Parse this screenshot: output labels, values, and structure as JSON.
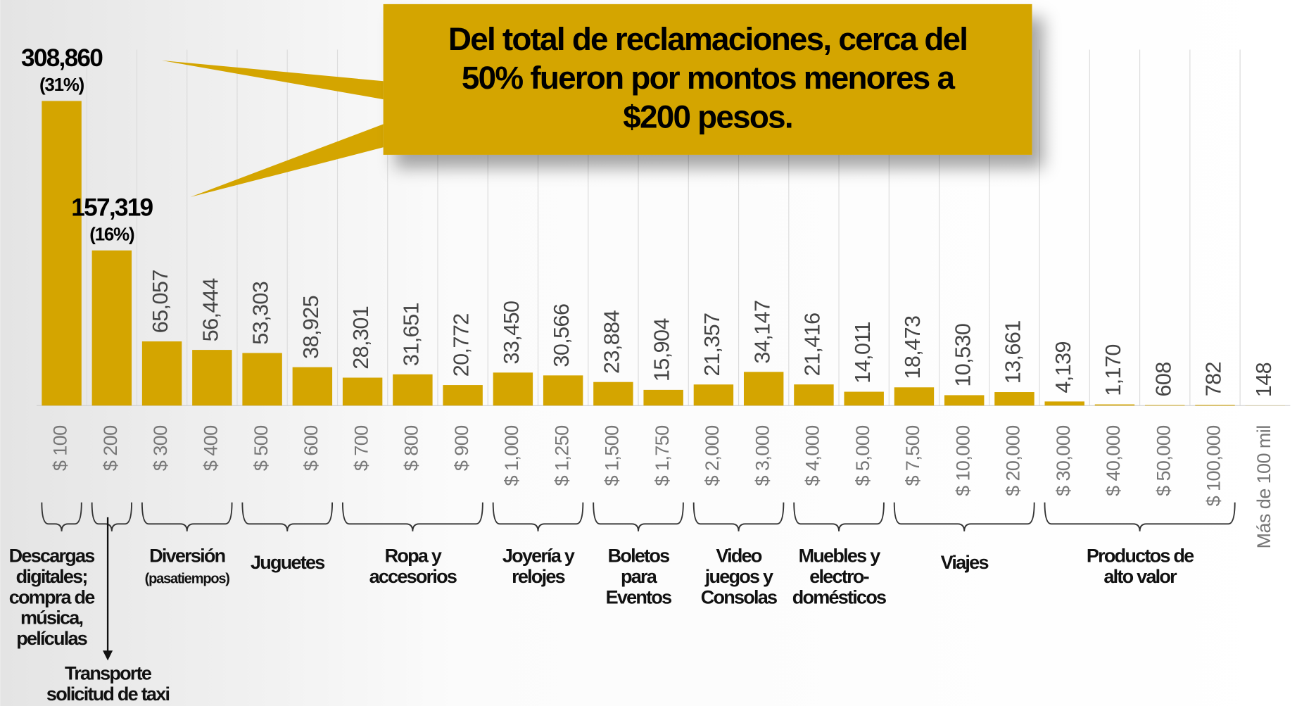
{
  "chart_data": {
    "type": "bar",
    "categories": [
      "$ 100",
      "$ 200",
      "$ 300",
      "$ 400",
      "$ 500",
      "$ 600",
      "$ 700",
      "$ 800",
      "$ 900",
      "$ 1,000",
      "$ 1,250",
      "$ 1,500",
      "$ 1,750",
      "$ 2,000",
      "$ 3,000",
      "$ 4,000",
      "$ 5,000",
      "$ 7,500",
      "$ 10,000",
      "$ 20,000",
      "$ 30,000",
      "$ 40,000",
      "$ 50,000",
      "$ 100,000",
      "Más de 100 mil"
    ],
    "values": [
      308860,
      157319,
      65057,
      56444,
      53303,
      38925,
      28301,
      31651,
      20772,
      33450,
      30566,
      23884,
      15904,
      21357,
      34147,
      21416,
      14011,
      18473,
      10530,
      13661,
      4139,
      1170,
      608,
      782,
      148
    ],
    "value_labels": [
      "308,860",
      "157,319",
      "65,057",
      "56,444",
      "53,303",
      "38,925",
      "28,301",
      "31,651",
      "20,772",
      "33,450",
      "30,566",
      "23,884",
      "15,904",
      "21,357",
      "34,147",
      "21,416",
      "14,011",
      "18,473",
      "10,530",
      "13,661",
      "4,139",
      "1,170",
      "608",
      "782",
      "148"
    ],
    "share_labels": [
      "(31%)",
      "(16%)"
    ],
    "color": "#d4a500",
    "groups": [
      {
        "lines": [
          "Descargas",
          "digitales;",
          "compra de",
          "música,",
          "películas"
        ]
      },
      {
        "lines": [
          "Transporte",
          "solicitud de taxi"
        ]
      },
      {
        "lines": [
          "Diversión"
        ],
        "sublabel": "(pasatiempos)"
      },
      {
        "lines": [
          "Juguetes"
        ]
      },
      {
        "lines": [
          "Ropa y",
          "accesorios"
        ]
      },
      {
        "lines": [
          "Joyería y",
          "relojes"
        ]
      },
      {
        "lines": [
          "Boletos",
          "para",
          "Eventos"
        ]
      },
      {
        "lines": [
          "Video",
          "juegos y",
          "Consolas"
        ]
      },
      {
        "lines": [
          "Muebles y",
          "electro-",
          "domésticos"
        ]
      },
      {
        "lines": [
          "Viajes"
        ]
      },
      {
        "lines": [
          "Productos de",
          "alto valor"
        ]
      }
    ],
    "callout": [
      "Del total de reclamaciones, cerca del",
      "50% fueron por montos menores a",
      "$200 pesos."
    ]
  }
}
